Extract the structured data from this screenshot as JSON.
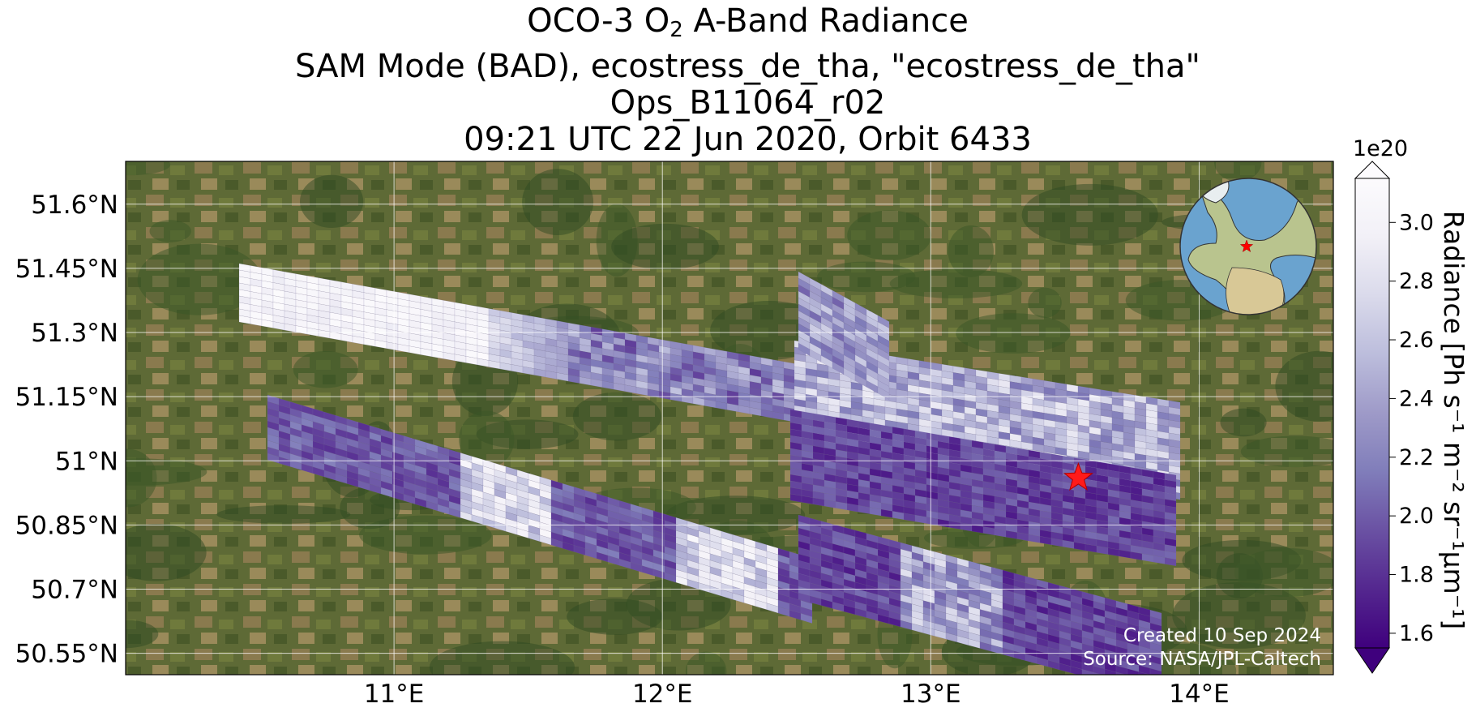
{
  "title": {
    "line1_prefix": "OCO-3 O",
    "line1_subscript": "2",
    "line1_suffix": " A-Band Radiance",
    "line2": "SAM Mode (BAD), ecostress_de_tha, \"ecostress_de_tha\"",
    "line3": "Ops_B11064_r02",
    "line4": "09:21 UTC 22 Jun 2020, Orbit 6433"
  },
  "map": {
    "lat_ticks": [
      "51.6°N",
      "51.45°N",
      "51.3°N",
      "51.15°N",
      "51°N",
      "50.85°N",
      "50.7°N",
      "50.55°N"
    ],
    "lon_ticks": [
      "11°E",
      "12°E",
      "13°E",
      "14°E"
    ],
    "extent": {
      "lon_min": 10.0,
      "lon_max": 14.5,
      "lat_min": 50.5,
      "lat_max": 51.7
    },
    "target_marker": {
      "lon": 13.55,
      "lat": 50.96,
      "color": "#ff1a1a"
    },
    "basemap": "satellite imagery (forest / farmland)",
    "gridlines": true
  },
  "inset_globe": {
    "description": "orthographic globe centered on Europe",
    "marker_color": "#ff0000"
  },
  "colorbar": {
    "label_prefix": "Radiance [Ph s",
    "label_full": "Radiance [Ph s⁻¹ m⁻² sr⁻¹μm⁻¹]",
    "scale_note": "1e20",
    "ticks": [
      "1.6",
      "1.8",
      "2.0",
      "2.2",
      "2.4",
      "2.6",
      "2.8",
      "3.0"
    ],
    "range": [
      1.55,
      3.15
    ],
    "colormap": "Purples_r",
    "colors": [
      "#3f007d",
      "#54278f",
      "#6a51a3",
      "#807dba",
      "#9e9ac8",
      "#bcbddc",
      "#dadaeb",
      "#f2f0f7",
      "#fcfbfd"
    ]
  },
  "credits": {
    "created": "Created 10 Sep 2024",
    "source": "Source: NASA/JPL-Caltech"
  }
}
